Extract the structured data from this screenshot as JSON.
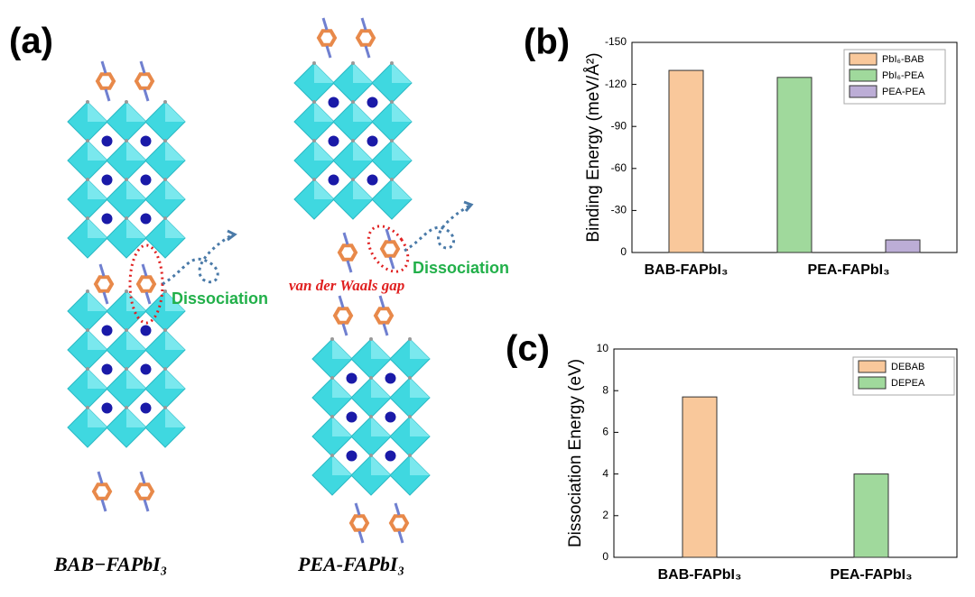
{
  "panel_a": {
    "label": "(a)",
    "annotations": [
      "Dissociation",
      "Dissociation",
      "van der Waals gap"
    ],
    "captions": [
      "BAB−FAPbI₃",
      "PEA-FAPbI₃"
    ]
  },
  "chart_data": [
    {
      "type": "bar",
      "panel_label": "(b)",
      "ylabel": "Binding Energy (meV/Å²)",
      "categories": [
        "BAB-FAPbI₃",
        "PEA-FAPbI₃"
      ],
      "series": [
        {
          "name": "PbI₆-BAB",
          "color": "#f9c89b",
          "values": [
            -130,
            null
          ]
        },
        {
          "name": "PbI₆-PEA",
          "color": "#a0d99c",
          "values": [
            null,
            -125
          ]
        },
        {
          "name": "PEA-PEA",
          "color": "#bcadd6",
          "values": [
            null,
            -9
          ]
        }
      ],
      "ylim": [
        0,
        -150
      ],
      "yticks": [
        0,
        -30,
        -60,
        -90,
        -120,
        -150
      ],
      "legend": "upper right"
    },
    {
      "type": "bar",
      "panel_label": "(c)",
      "ylabel": "Dissociation  Energy (eV)",
      "categories": [
        "BAB-FAPbI₃",
        "PEA-FAPbI₃"
      ],
      "series": [
        {
          "name": "DEBAB",
          "color": "#f9c89b",
          "values": [
            7.7,
            null
          ]
        },
        {
          "name": "DEPEA",
          "color": "#a0d99c",
          "values": [
            null,
            4.0
          ]
        }
      ],
      "ylim": [
        0,
        10
      ],
      "yticks": [
        0,
        2,
        4,
        6,
        8,
        10
      ],
      "legend": "upper right"
    }
  ]
}
